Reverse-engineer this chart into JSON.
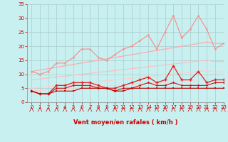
{
  "x": [
    0,
    1,
    2,
    3,
    4,
    5,
    6,
    7,
    8,
    9,
    10,
    11,
    12,
    13,
    14,
    15,
    16,
    17,
    18,
    19,
    20,
    21,
    22,
    23
  ],
  "rafales": [
    11,
    10,
    11,
    14,
    14,
    16,
    19,
    19,
    16,
    15,
    17,
    19,
    20,
    22,
    24,
    19,
    25,
    31,
    23,
    26,
    31,
    26,
    19,
    21
  ],
  "vent_moy_high": [
    4,
    3,
    3,
    6,
    6,
    7,
    7,
    7,
    6,
    5,
    5,
    6,
    7,
    8,
    9,
    7,
    8,
    13,
    8,
    8,
    11,
    7,
    8,
    8
  ],
  "vent_moy_low": [
    4,
    3,
    3,
    5,
    5,
    6,
    6,
    6,
    5,
    5,
    4,
    5,
    5,
    6,
    7,
    6,
    6,
    7,
    6,
    6,
    6,
    6,
    7,
    7
  ],
  "vent_low_flat": [
    4,
    3,
    3,
    4,
    4,
    4,
    5,
    5,
    5,
    5,
    4,
    4,
    5,
    5,
    5,
    5,
    5,
    5,
    5,
    5,
    5,
    5,
    5,
    5
  ],
  "trend_upper": [
    11,
    11.5,
    12,
    12.5,
    13,
    13.5,
    14,
    14.5,
    15,
    15.5,
    16,
    16.5,
    17,
    17.5,
    18,
    18.5,
    19,
    19.5,
    20,
    20.5,
    21,
    21.5,
    21,
    21
  ],
  "trend_mid1": [
    8,
    8.3,
    8.7,
    9.0,
    9.3,
    9.7,
    10.0,
    10.3,
    10.7,
    11.0,
    11.3,
    11.7,
    12.0,
    12.3,
    12.7,
    13.0,
    13.3,
    13.7,
    14.0,
    14.3,
    14.7,
    15.0,
    14.5,
    14.5
  ],
  "trend_mid2": [
    5,
    5.3,
    5.6,
    5.9,
    6.2,
    6.5,
    6.8,
    7.1,
    7.4,
    7.7,
    8.0,
    8.3,
    8.6,
    8.9,
    9.2,
    9.5,
    9.8,
    10.1,
    10.4,
    10.7,
    11.0,
    11.3,
    10.8,
    10.8
  ],
  "trend_low_line": [
    4,
    4.2,
    4.4,
    4.6,
    4.8,
    5.0,
    5.2,
    5.4,
    5.6,
    5.8,
    6.0,
    6.2,
    6.4,
    6.6,
    6.8,
    7.0,
    7.2,
    7.4,
    7.6,
    7.8,
    8.0,
    8.2,
    8.0,
    8.0
  ],
  "bg_color": "#c8f0f0",
  "grid_color": "#aacccc",
  "color_rafales": "#ff8888",
  "color_vent_high": "#dd2222",
  "color_vent_low": "#cc1111",
  "color_vent_flat": "#bb0000",
  "color_trend_upper": "#ffaaaa",
  "color_trend_mid": "#ffbbbb",
  "color_trend_low": "#ffcccc",
  "xlabel": "Vent moyen/en rafales ( km/h )",
  "xlim": [
    -0.5,
    23
  ],
  "ylim": [
    0,
    35
  ],
  "yticks": [
    0,
    5,
    10,
    15,
    20,
    25,
    30,
    35
  ],
  "xticks": [
    0,
    1,
    2,
    3,
    4,
    5,
    6,
    7,
    8,
    9,
    10,
    11,
    12,
    13,
    14,
    15,
    16,
    17,
    18,
    19,
    20,
    21,
    22,
    23
  ]
}
